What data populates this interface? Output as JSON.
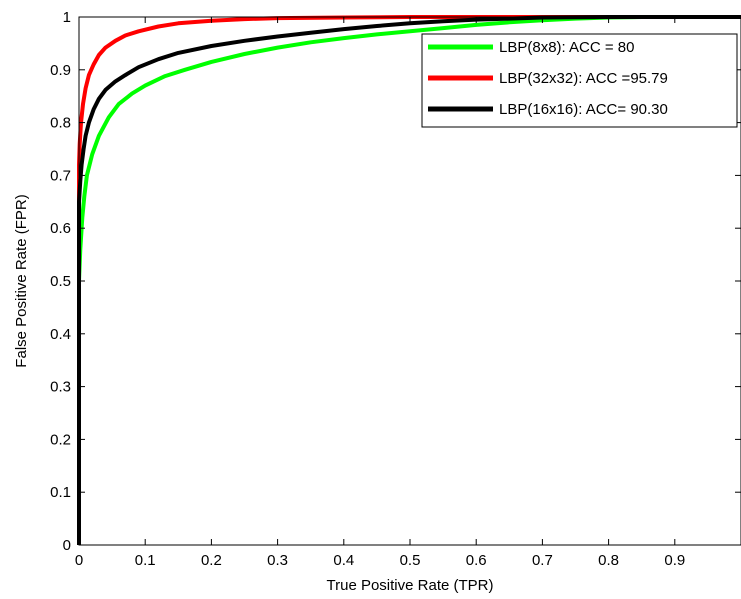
{
  "chart_data": {
    "type": "line",
    "title": "",
    "xlabel": "True Positive Rate (TPR)",
    "ylabel": "False Positive Rate (FPR)",
    "xlim": [
      0,
      1
    ],
    "ylim": [
      0,
      1
    ],
    "xticks": [
      0,
      0.1,
      0.2,
      0.3,
      0.4,
      0.5,
      0.6,
      0.7,
      0.8,
      0.9
    ],
    "xtick_labels": [
      "0",
      "0.1",
      "0.2",
      "0.3",
      "0.4",
      "0.5",
      "0.6",
      "0.7",
      "0.8",
      "0.9"
    ],
    "yticks": [
      0,
      0.1,
      0.2,
      0.3,
      0.4,
      0.5,
      0.6,
      0.7,
      0.8,
      0.9,
      1
    ],
    "ytick_labels": [
      "0",
      "0.1",
      "0.2",
      "0.3",
      "0.4",
      "0.5",
      "0.6",
      "0.7",
      "0.8",
      "0.9",
      "1"
    ],
    "grid": false,
    "legend_position": "top-right",
    "series": [
      {
        "name": "LBP(8x8): ACC = 80",
        "color": "#00ff00",
        "x": [
          0,
          0,
          0.002,
          0.005,
          0.008,
          0.012,
          0.02,
          0.03,
          0.045,
          0.06,
          0.08,
          0.1,
          0.13,
          0.16,
          0.2,
          0.25,
          0.3,
          0.35,
          0.4,
          0.45,
          0.5,
          0.55,
          0.6,
          0.65,
          0.7,
          0.75,
          0.8,
          0.85,
          0.9,
          1.0
        ],
        "y": [
          0,
          0.5,
          0.56,
          0.62,
          0.66,
          0.7,
          0.74,
          0.775,
          0.81,
          0.835,
          0.855,
          0.87,
          0.888,
          0.9,
          0.915,
          0.93,
          0.942,
          0.952,
          0.96,
          0.967,
          0.973,
          0.979,
          0.985,
          0.99,
          0.994,
          0.997,
          0.999,
          1.0,
          1.0,
          1.0
        ]
      },
      {
        "name": "LBP(32x32): ACC =95.79",
        "color": "#ff0000",
        "x": [
          0,
          0,
          0.001,
          0.003,
          0.006,
          0.01,
          0.015,
          0.022,
          0.03,
          0.04,
          0.055,
          0.07,
          0.09,
          0.12,
          0.15,
          0.2,
          0.25,
          0.3,
          0.4,
          0.5,
          0.6,
          0.7,
          0.8,
          1.0
        ],
        "y": [
          0,
          0.72,
          0.76,
          0.8,
          0.835,
          0.865,
          0.89,
          0.91,
          0.928,
          0.942,
          0.955,
          0.965,
          0.973,
          0.982,
          0.988,
          0.993,
          0.996,
          0.998,
          0.999,
          1.0,
          1.0,
          1.0,
          1.0,
          1.0
        ]
      },
      {
        "name": "LBP(16x16): ACC= 90.30",
        "color": "#000000",
        "x": [
          0,
          0,
          0.002,
          0.004,
          0.007,
          0.01,
          0.015,
          0.022,
          0.03,
          0.04,
          0.055,
          0.07,
          0.09,
          0.12,
          0.15,
          0.2,
          0.25,
          0.3,
          0.35,
          0.4,
          0.45,
          0.5,
          0.55,
          0.6,
          0.65,
          0.7,
          0.8,
          0.9,
          1.0
        ],
        "y": [
          0,
          0.65,
          0.69,
          0.72,
          0.75,
          0.775,
          0.8,
          0.825,
          0.845,
          0.862,
          0.878,
          0.89,
          0.905,
          0.92,
          0.932,
          0.945,
          0.955,
          0.963,
          0.97,
          0.977,
          0.983,
          0.988,
          0.992,
          0.995,
          0.997,
          0.999,
          1.0,
          1.0,
          1.0
        ]
      }
    ]
  }
}
